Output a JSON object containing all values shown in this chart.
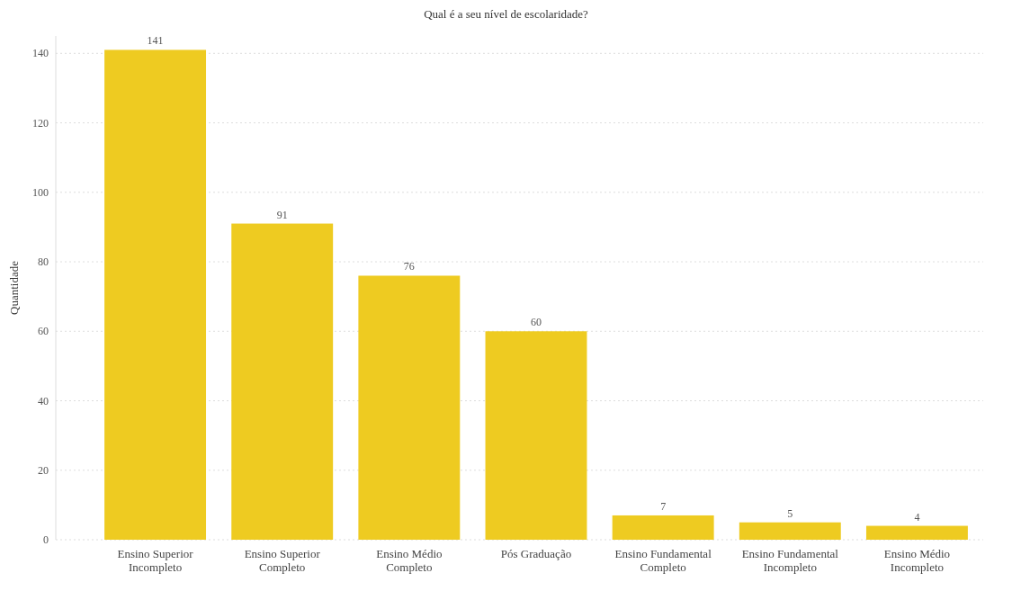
{
  "chart_data": {
    "type": "bar",
    "title": "Qual é a seu nível de escolaridade?",
    "ylabel": "Quantidade",
    "categories": [
      "Ensino Superior Incompleto",
      "Ensino Superior Completo",
      "Ensino Médio Completo",
      "Pós Graduação",
      "Ensino Fundamental Completo",
      "Ensino Fundamental Incompleto",
      "Ensino Médio Incompleto"
    ],
    "values": [
      141,
      91,
      76,
      60,
      7,
      5,
      4
    ],
    "color": "#eecb21",
    "ylim": [
      0,
      145
    ],
    "yticks": [
      0,
      20,
      40,
      60,
      80,
      100,
      120,
      140
    ],
    "grid": "y",
    "data_labels": true
  }
}
